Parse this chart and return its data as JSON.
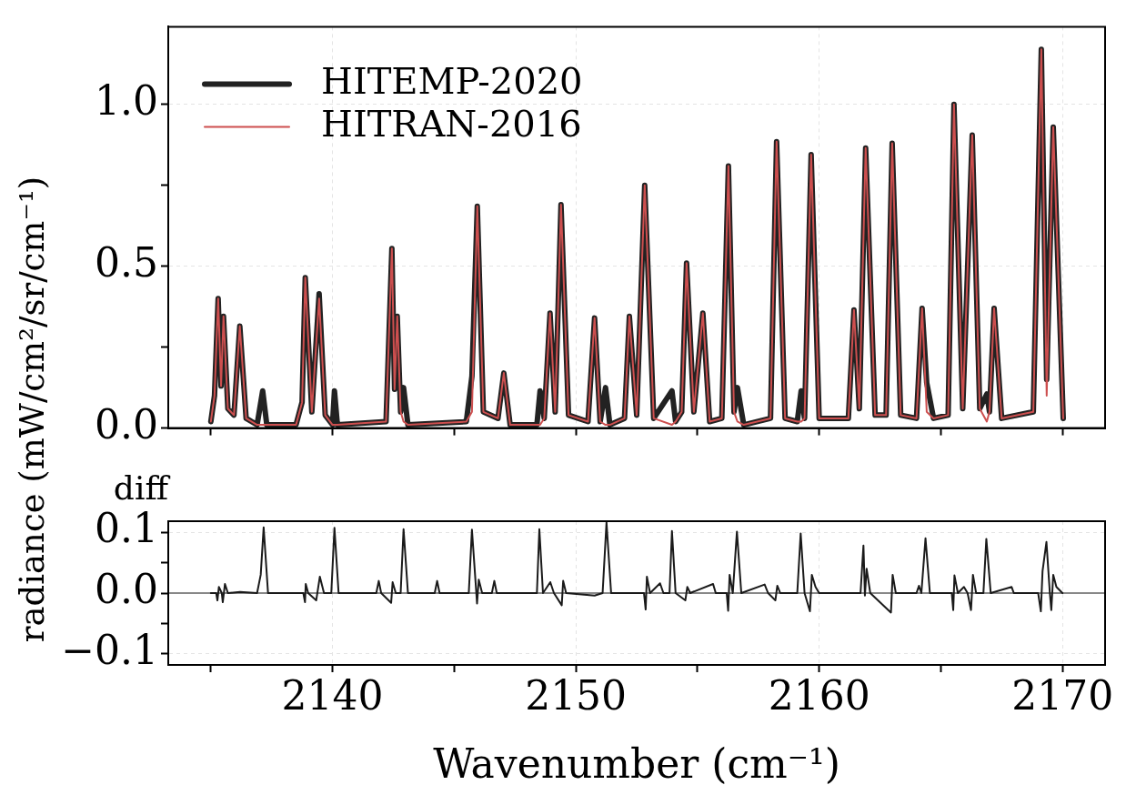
{
  "chart_data": [
    {
      "type": "line",
      "ylabel": "radiance (mW/cm²/sr/cm⁻¹)",
      "xlim": [
        2133.25,
        2171.75
      ],
      "ylim": [
        0,
        1.24
      ],
      "xticks": [
        {
          "value": 2135,
          "label": null
        },
        2140,
        {
          "value": 2145,
          "label": null
        },
        2150,
        {
          "value": 2155,
          "label": null
        },
        2160,
        {
          "value": 2165,
          "label": null
        },
        2170
      ],
      "yticks": [
        {
          "value": 0,
          "label": "0.0"
        },
        {
          "value": 0.25,
          "label": null
        },
        0.5,
        {
          "value": 0.75,
          "label": null
        },
        {
          "value": 1,
          "label": "1.0"
        }
      ],
      "tick_labels": "y",
      "grid": true,
      "legend": "top left",
      "marker": "none",
      "line_style": "solid",
      "x": [
        2135.0,
        2135.15,
        2135.3,
        2135.42,
        2135.52,
        2135.7,
        2135.95,
        2136.19,
        2136.45,
        2136.9,
        2137.13,
        2137.3,
        2138.5,
        2138.75,
        2138.88,
        2139.15,
        2139.45,
        2139.7,
        2140.0,
        2140.08,
        2140.2,
        2142.2,
        2142.44,
        2142.55,
        2142.66,
        2142.8,
        2142.92,
        2143.1,
        2145.5,
        2145.73,
        2145.95,
        2146.2,
        2146.8,
        2147.04,
        2147.3,
        2148.4,
        2148.53,
        2148.7,
        2148.94,
        2149.15,
        2149.39,
        2149.7,
        2150.5,
        2150.77,
        2151.0,
        2151.22,
        2151.4,
        2152.0,
        2152.2,
        2152.5,
        2152.83,
        2153.2,
        2153.95,
        2154.1,
        2154.35,
        2154.55,
        2154.85,
        2155.22,
        2155.5,
        2156.0,
        2156.27,
        2156.5,
        2156.64,
        2156.9,
        2158.0,
        2158.25,
        2158.6,
        2159.1,
        2159.26,
        2159.4,
        2159.67,
        2160.0,
        2161.2,
        2161.43,
        2161.65,
        2161.91,
        2162.3,
        2162.75,
        2163.0,
        2163.35,
        2164.0,
        2164.23,
        2164.42,
        2164.7,
        2165.3,
        2165.54,
        2165.9,
        2166.29,
        2166.6,
        2166.89,
        2167.0,
        2167.19,
        2167.5,
        2168.8,
        2169.13,
        2169.35,
        2169.62,
        2170.03
      ],
      "series": [
        {
          "name": "HITEMP-2020",
          "color": "#222222",
          "values": [
            0.02,
            0.1,
            0.4,
            0.13,
            0.345,
            0.06,
            0.04,
            0.315,
            0.03,
            0.01,
            0.115,
            0.01,
            0.01,
            0.08,
            0.465,
            0.05,
            0.415,
            0.04,
            0.01,
            0.115,
            0.01,
            0.02,
            0.555,
            0.12,
            0.345,
            0.05,
            0.125,
            0.01,
            0.02,
            0.16,
            0.685,
            0.05,
            0.03,
            0.17,
            0.01,
            0.01,
            0.115,
            0.03,
            0.355,
            0.05,
            0.69,
            0.04,
            0.02,
            0.34,
            0.02,
            0.125,
            0.01,
            0.03,
            0.345,
            0.04,
            0.75,
            0.03,
            0.115,
            0.02,
            0.05,
            0.51,
            0.05,
            0.355,
            0.02,
            0.03,
            0.81,
            0.05,
            0.125,
            0.01,
            0.03,
            0.885,
            0.03,
            0.02,
            0.115,
            0.03,
            0.845,
            0.03,
            0.03,
            0.365,
            0.06,
            0.865,
            0.04,
            0.04,
            0.88,
            0.04,
            0.03,
            0.37,
            0.14,
            0.03,
            0.04,
            1.0,
            0.06,
            0.905,
            0.06,
            0.105,
            0.05,
            0.37,
            0.03,
            0.05,
            1.17,
            0.15,
            0.93,
            0.03
          ]
        },
        {
          "name": "HITRAN-2016",
          "color": "#cd4f4f",
          "values": [
            0.02,
            0.1,
            0.4,
            0.13,
            0.345,
            0.06,
            0.04,
            0.315,
            0.03,
            0.01,
            0.01,
            0.01,
            0.01,
            0.08,
            0.465,
            0.05,
            0.4,
            0.04,
            0.01,
            0.01,
            0.01,
            0.02,
            0.555,
            0.12,
            0.345,
            0.05,
            0.02,
            0.01,
            0.02,
            0.05,
            0.685,
            0.05,
            0.03,
            0.17,
            0.01,
            0.01,
            0.01,
            0.03,
            0.355,
            0.05,
            0.69,
            0.04,
            0.02,
            0.34,
            0.02,
            0.01,
            0.01,
            0.03,
            0.345,
            0.04,
            0.75,
            0.03,
            0.01,
            0.02,
            0.05,
            0.51,
            0.05,
            0.355,
            0.02,
            0.03,
            0.81,
            0.05,
            0.02,
            0.01,
            0.03,
            0.885,
            0.03,
            0.02,
            0.02,
            0.03,
            0.845,
            0.03,
            0.03,
            0.365,
            0.06,
            0.865,
            0.04,
            0.04,
            0.88,
            0.04,
            0.03,
            0.37,
            0.05,
            0.03,
            0.04,
            1.0,
            0.06,
            0.905,
            0.06,
            0.02,
            0.05,
            0.37,
            0.03,
            0.05,
            1.17,
            0.1,
            0.93,
            0.03
          ]
        }
      ]
    },
    {
      "type": "line",
      "ylabel": "diff",
      "xlabel": "Wavenumber (cm⁻¹)",
      "xlim": [
        2133.25,
        2171.75
      ],
      "ylim": [
        -0.118,
        0.118
      ],
      "xticks": [
        {
          "value": 2135,
          "label": null
        },
        2140,
        {
          "value": 2145,
          "label": null
        },
        2150,
        {
          "value": 2155,
          "label": null
        },
        2160,
        {
          "value": 2165,
          "label": null
        },
        2170
      ],
      "yticks": [
        {
          "value": -0.1,
          "label": "−0.1"
        },
        {
          "value": -0.05,
          "label": null
        },
        {
          "value": 0,
          "label": "0.0"
        },
        {
          "value": 0.05,
          "label": null
        },
        0.1
      ],
      "grid": true,
      "marker": "none",
      "line_style": "solid",
      "ref_lines": [
        {
          "axis": "y",
          "value": 0,
          "color": "#888888"
        }
      ],
      "x": [
        2135.0,
        2135.22,
        2135.27,
        2135.33,
        2135.45,
        2135.49,
        2135.58,
        2135.7,
        2136.2,
        2136.9,
        2137.05,
        2137.17,
        2137.35,
        2138.8,
        2138.87,
        2138.9,
        2139.0,
        2139.33,
        2139.48,
        2139.65,
        2139.95,
        2140.08,
        2140.25,
        2141.8,
        2141.9,
        2142.0,
        2142.41,
        2142.47,
        2142.6,
        2142.8,
        2142.92,
        2143.1,
        2144.2,
        2144.3,
        2144.4,
        2145.6,
        2145.73,
        2145.94,
        2146.01,
        2146.15,
        2146.55,
        2146.65,
        2146.75,
        2148.4,
        2148.5,
        2148.65,
        2148.95,
        2149.1,
        2149.42,
        2149.48,
        2149.6,
        2150.77,
        2151.1,
        2151.26,
        2151.45,
        2152.8,
        2152.87,
        2152.92,
        2153.05,
        2153.46,
        2153.6,
        2153.85,
        2153.95,
        2154.1,
        2154.5,
        2154.58,
        2154.7,
        2155.64,
        2155.75,
        2156.2,
        2156.26,
        2156.32,
        2156.45,
        2156.62,
        2156.8,
        2157.76,
        2157.9,
        2158.2,
        2158.28,
        2158.4,
        2159.1,
        2159.24,
        2159.4,
        2159.62,
        2159.7,
        2159.85,
        2160.0,
        2161.7,
        2161.82,
        2161.88,
        2161.95,
        2162.1,
        2162.95,
        2163.02,
        2163.15,
        2164.0,
        2164.1,
        2164.2,
        2164.37,
        2164.55,
        2165.45,
        2165.51,
        2165.56,
        2165.7,
        2165.95,
        2166.1,
        2166.24,
        2166.32,
        2166.45,
        2166.75,
        2166.87,
        2167.05,
        2167.91,
        2168.0,
        2169.0,
        2169.11,
        2169.18,
        2169.34,
        2169.48,
        2169.54,
        2169.62,
        2169.75,
        2170.0
      ],
      "series": [
        {
          "color": "#1a1a1a",
          "values": [
            0,
            0,
            -0.012,
            0.01,
            0,
            -0.015,
            0.015,
            0,
            0.002,
            0,
            0.03,
            0.108,
            0,
            0,
            -0.015,
            0.015,
            0,
            -0.012,
            0.027,
            0,
            0,
            0.107,
            0,
            0,
            0.02,
            0,
            -0.016,
            0.018,
            0,
            0,
            0.105,
            0,
            0,
            0.02,
            0,
            0,
            0.104,
            -0.017,
            0.022,
            0,
            0,
            0.02,
            0,
            0,
            0.105,
            0,
            0.018,
            0,
            -0.02,
            0.02,
            0,
            -0.004,
            0,
            0.116,
            0,
            0,
            -0.027,
            0.027,
            0,
            0.016,
            0,
            0,
            0.102,
            0,
            -0.012,
            0.01,
            0,
            0.015,
            0,
            0,
            -0.029,
            0.03,
            0,
            0.101,
            0,
            0.014,
            0,
            -0.012,
            0.012,
            0,
            0,
            0.098,
            0,
            -0.03,
            0.03,
            0.01,
            0,
            0,
            0.078,
            -0.004,
            0.04,
            0,
            -0.032,
            0.03,
            0,
            0,
            0.012,
            0,
            0.09,
            0,
            0,
            -0.028,
            0.029,
            0,
            0.01,
            0,
            -0.028,
            0.03,
            0,
            0,
            0.089,
            0,
            0.01,
            0,
            0,
            -0.03,
            0.036,
            0.084,
            0,
            -0.028,
            0.03,
            0.01,
            0
          ]
        }
      ]
    }
  ]
}
